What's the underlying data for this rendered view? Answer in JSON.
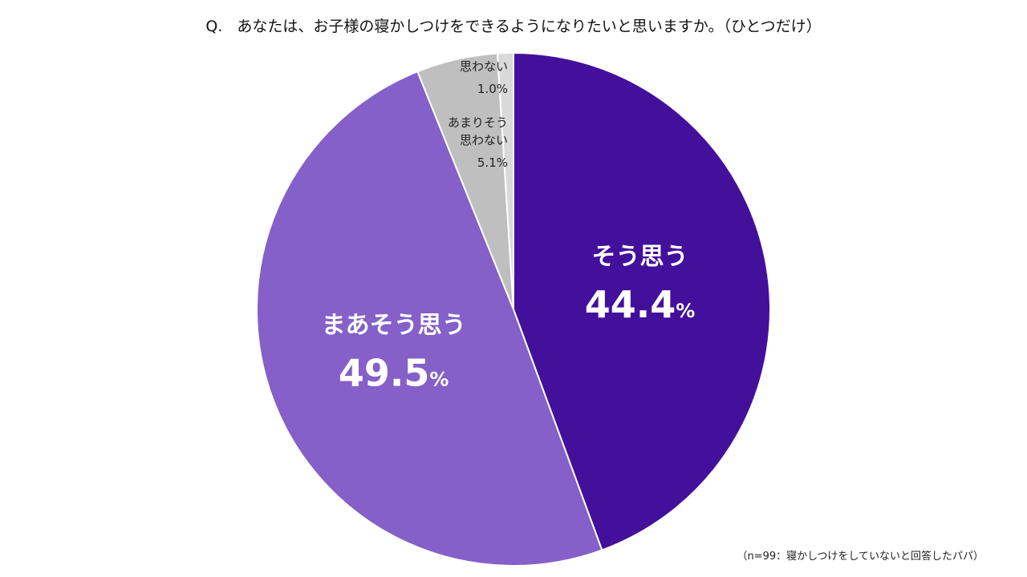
{
  "title": {
    "prefix": "Q.",
    "text": "あなたは、お子様の寝かしつけをできるようになりたいと思いますか。（ひとつだけ）"
  },
  "note": "（n=99：寝かしつけをしていないと回答したパパ）",
  "chart_data": {
    "type": "pie",
    "categories": [
      "そう思う",
      "まあそう思う",
      "あまりそう思わない",
      "思わない"
    ],
    "values": [
      44.4,
      49.5,
      5.1,
      1.0
    ],
    "value_labels": [
      "44.4",
      "49.5",
      "5.1",
      "1.0"
    ],
    "label_lines": [
      [
        "そう思う"
      ],
      [
        "まあそう思う"
      ],
      [
        "あまりそう",
        "思わない"
      ],
      [
        "思わない"
      ]
    ],
    "unit": "%",
    "colors": [
      "#43109C",
      "#8460C8",
      "#BFBFBF",
      "#D9D9D9"
    ],
    "start": "12 o'clock",
    "direction": "clockwise"
  }
}
